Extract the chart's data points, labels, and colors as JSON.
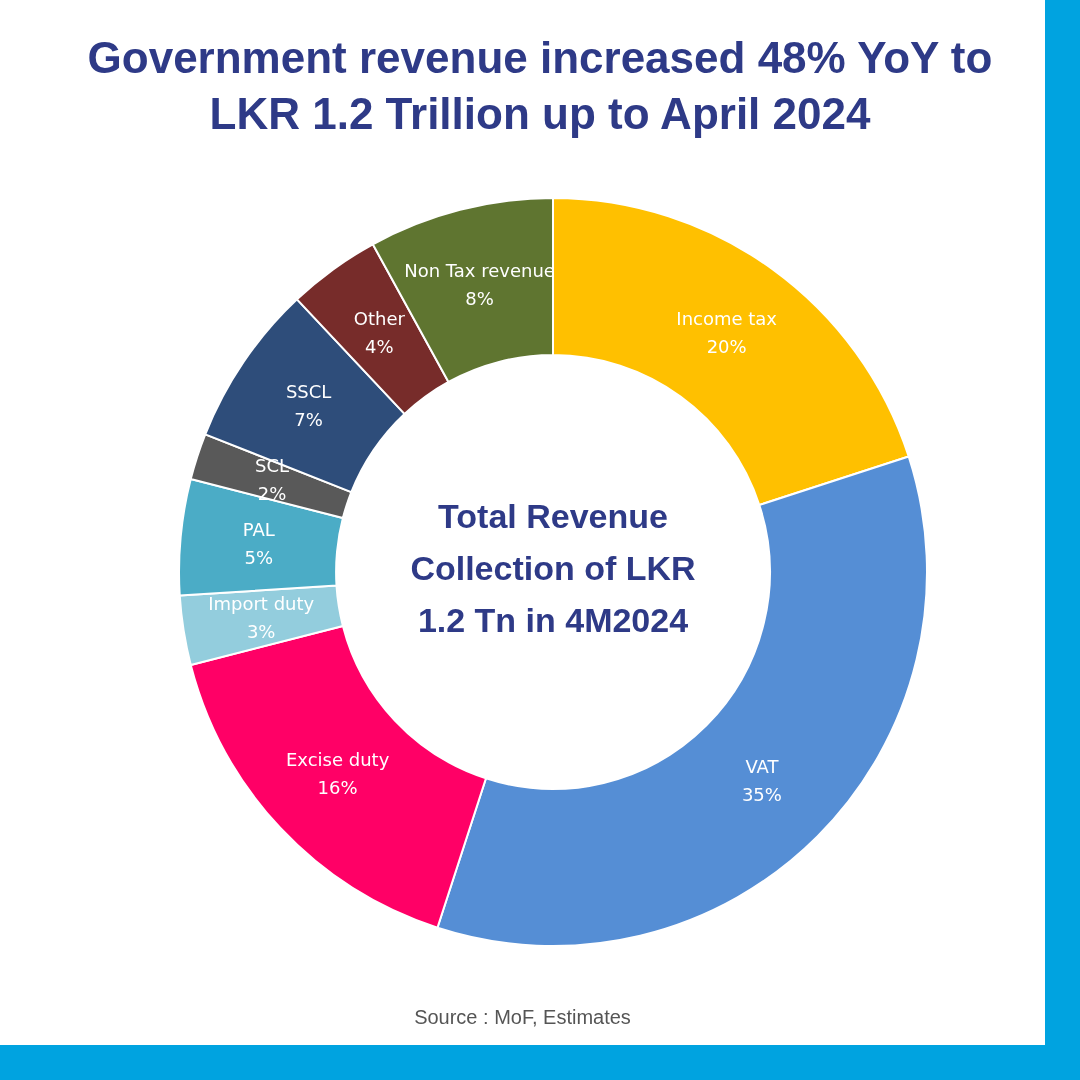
{
  "chart_data": {
    "type": "donut",
    "title": "Government revenue increased 48% YoY to LKR 1.2 Trillion up to April 2024",
    "categories": [
      "Income tax",
      "VAT",
      "Excise duty",
      "Import duty",
      "PAL",
      "SCL",
      "SSCL",
      "Other",
      "Non Tax revenue"
    ],
    "values": [
      20,
      35,
      16,
      3,
      5,
      2,
      7,
      4,
      8
    ],
    "colors": [
      "#ffc000",
      "#558ed5",
      "#ff0066",
      "#93cddd",
      "#4bacc6",
      "#595959",
      "#2e4d7a",
      "#772c2a",
      "#5f7530"
    ],
    "value_labels": [
      "20%",
      "35%",
      "16%",
      "3%",
      "5%",
      "2%",
      "7%",
      "4%",
      "8%"
    ],
    "legend": false,
    "annotations": [
      "Total Revenue Collection of LKR 1.2 Tn in 4M2024",
      "Source : MoF, Estimates"
    ]
  }
}
